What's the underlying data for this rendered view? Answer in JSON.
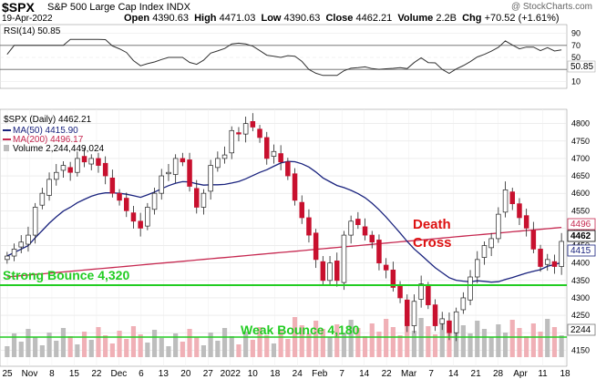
{
  "header": {
    "symbol": "$SPX",
    "description": "S&P 500 Large Cap Index INDX",
    "date": "19-Apr-2022",
    "open_label": "Open",
    "open": "4390.63",
    "high_label": "High",
    "high": "4471.03",
    "low_label": "Low",
    "low": "4390.63",
    "close_label": "Close",
    "close": "4462.21",
    "volume_label": "Volume",
    "volume": "2.2B",
    "chg_label": "Chg",
    "chg": "+70.52 (+1.61%)",
    "watermark": "@ StockCharts.com"
  },
  "rsi_panel": {
    "legend": "RSI(14) 50.85",
    "ticks": [
      "90",
      "70",
      "50",
      "30",
      "10"
    ],
    "last_label": "50.85"
  },
  "price_panel": {
    "legend_price": "$SPX (Daily) 4462.21",
    "legend_ma50": "MA(50) 4415.90",
    "legend_ma200": "MA(200) 4496.17",
    "legend_volume": "Volume 2,244,449,024",
    "y_ticks": [
      "4800",
      "4750",
      "4700",
      "4650",
      "4600",
      "4550",
      "4500",
      "4450",
      "4400",
      "4350",
      "4300",
      "4250",
      "4200",
      "4150"
    ],
    "tag_ma200": "4496",
    "tag_close": "4462",
    "tag_ma50": "4415",
    "tag_volume": "2244",
    "x_ticks": [
      "25",
      "Nov",
      "8",
      "15",
      "22",
      "Dec",
      "6",
      "13",
      "20",
      "27",
      "2022",
      "10",
      "18",
      "24",
      "Feb",
      "7",
      "14",
      "22",
      "Mar",
      "7",
      "14",
      "21",
      "28",
      "Apr",
      "11",
      "18"
    ]
  },
  "annotations": {
    "strong_bounce": "Strong Bounce 4,320",
    "weak_bounce": "Weak Bounce 4,180",
    "death_cross_1": "Death",
    "death_cross_2": "Cross"
  },
  "colors": {
    "up": "#ffffff",
    "down": "#c8102e",
    "ma50": "#1a237e",
    "ma200": "#c62850",
    "annotation_green": "#22cc22",
    "death_red": "#dd1111",
    "volume_up": "#bdbdbd",
    "volume_down": "#f0b0b6"
  },
  "chart_data": {
    "type": "candlestick",
    "series": [
      {
        "name": "$SPX (Daily)",
        "close": [
          4420,
          4440,
          4460,
          4480,
          4560,
          4600,
          4640,
          4660,
          4680,
          4660,
          4700,
          4690,
          4700,
          4680,
          4650,
          4600,
          4580,
          4550,
          4520,
          4500,
          4560,
          4600,
          4650,
          4660,
          4700,
          4690,
          4620,
          4560,
          4600,
          4680,
          4700,
          4710,
          4780,
          4770,
          4800,
          4790,
          4760,
          4700,
          4720,
          4690,
          4650,
          4580,
          4530,
          4480,
          4410,
          4350,
          4400,
          4350,
          4480,
          4520,
          4510,
          4480,
          4460,
          4400,
          4380,
          4330,
          4300,
          4220,
          4290,
          4340,
          4280,
          4220,
          4240,
          4200,
          4260,
          4300,
          4360,
          4410,
          4450,
          4470,
          4540,
          4610,
          4570,
          4530,
          4500,
          4440,
          4390,
          4410,
          4390,
          4462
        ]
      },
      {
        "name": "MA(50)",
        "last": 4415.9
      },
      {
        "name": "MA(200)",
        "last": 4496.17
      },
      {
        "name": "RSI(14)",
        "last": 50.85
      }
    ],
    "ylim": [
      4130,
      4820
    ],
    "rsi_ylim": [
      0,
      100
    ],
    "grid": true,
    "legend": "top-left"
  }
}
